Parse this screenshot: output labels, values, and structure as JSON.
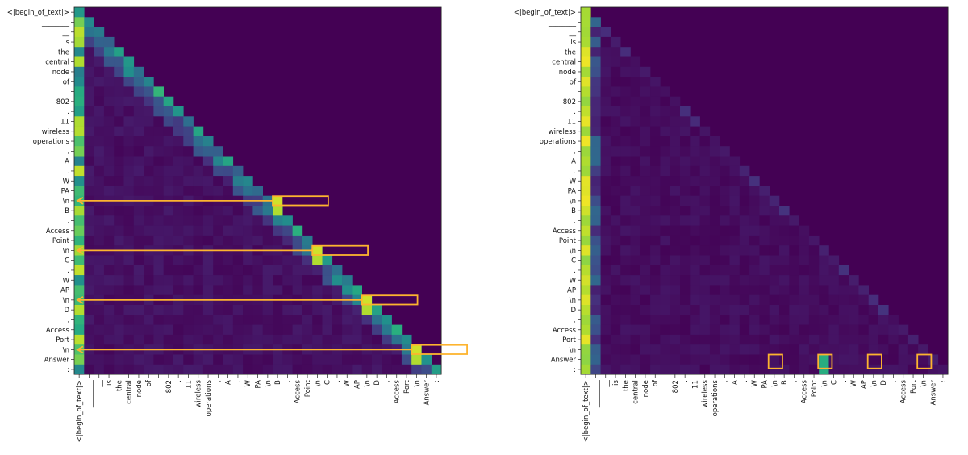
{
  "chart_data": [
    {
      "type": "heatmap",
      "name": "left",
      "title": "",
      "tokens": [
        "<|begin_of_text|>",
        "________",
        "__",
        "is",
        "the",
        "central",
        "node",
        "of",
        "",
        "802",
        ".",
        "11",
        "wireless",
        "operations",
        ".",
        "A",
        ".",
        "W",
        "PA",
        "\\n",
        "B",
        ".",
        "Access",
        "Point",
        "\\n",
        "C",
        ".",
        "W",
        "AP",
        "\\n",
        "D",
        ".",
        "Access",
        "Port",
        "\\n",
        "Answer",
        ":"
      ],
      "annotations": {
        "arrows_from_columns": [
          20,
          24,
          29,
          34
        ],
        "boxed_rows": [
          19,
          24,
          29,
          34
        ]
      }
    },
    {
      "type": "heatmap",
      "name": "right",
      "title": "",
      "tokens": [
        "<|begin_of_text|>",
        "________",
        "__",
        "is",
        "the",
        "central",
        "node",
        "of",
        "",
        "802",
        ".",
        "11",
        "wireless",
        "operations",
        ".",
        "A",
        ".",
        "W",
        "PA",
        "\\n",
        "B",
        ".",
        "Access",
        "Point",
        "\\n",
        "C",
        ".",
        "W",
        "AP",
        "\\n",
        "D",
        ".",
        "Access",
        "Port",
        "\\n",
        "Answer",
        ":"
      ],
      "annotations": {
        "boxed_columns": [
          19,
          24,
          29,
          34
        ]
      }
    }
  ],
  "palette": {
    "background": "#440154",
    "accent": "#fdb42f",
    "cmap": [
      "#440154",
      "#472d7b",
      "#3b528b",
      "#2c728e",
      "#21918c",
      "#28ae80",
      "#5ec962",
      "#addc30",
      "#fde725"
    ]
  }
}
